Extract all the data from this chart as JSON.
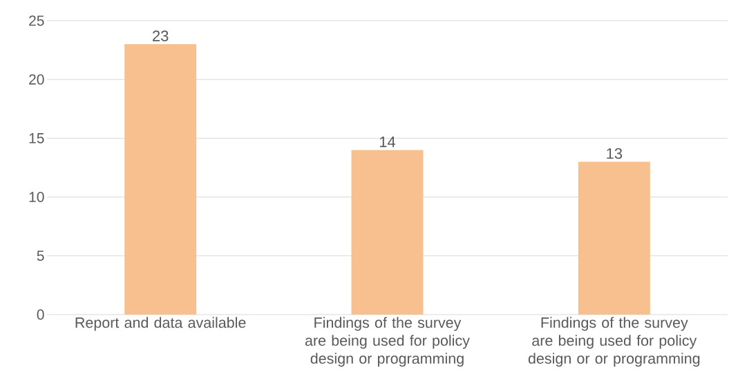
{
  "chart_data": {
    "type": "bar",
    "categories": [
      "Report and data available",
      "Findings of the survey are being used for policy design or programming",
      "Findings of the survey are being used for policy design or or programming"
    ],
    "values": [
      23,
      14,
      13
    ],
    "color": "#f9c08f",
    "ylim": [
      0,
      25
    ],
    "yticks": [
      0,
      5,
      10,
      15,
      20,
      25
    ],
    "grid": "y",
    "data_labels": true
  }
}
